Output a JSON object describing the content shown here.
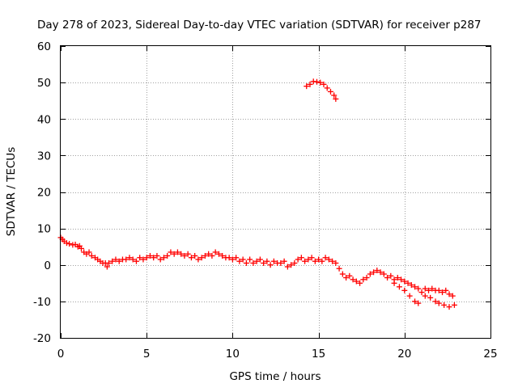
{
  "chart_data": {
    "type": "scatter",
    "title": "Day 278 of 2023, Sidereal Day-to-day VTEC variation (SDTVAR) for receiver p287",
    "xlabel": "GPS time / hours",
    "ylabel": "SDTVAR / TECUs",
    "xlim": [
      0,
      25
    ],
    "ylim": [
      -20,
      60
    ],
    "xticks": [
      "0",
      "5",
      "10",
      "15",
      "20",
      "25"
    ],
    "yticks": [
      "-20",
      "-10",
      "0",
      "10",
      "20",
      "30",
      "40",
      "50",
      "60"
    ],
    "grid": true,
    "marker": "plus",
    "color": "#ff0000",
    "series": [
      {
        "name": "SDTVAR",
        "points": [
          [
            0.0,
            7.5
          ],
          [
            0.1,
            7.0
          ],
          [
            0.2,
            6.5
          ],
          [
            0.35,
            6.0
          ],
          [
            0.5,
            5.8
          ],
          [
            0.7,
            5.5
          ],
          [
            0.85,
            5.6
          ],
          [
            1.0,
            5.0
          ],
          [
            1.1,
            5.2
          ],
          [
            1.2,
            4.5
          ],
          [
            1.35,
            3.5
          ],
          [
            1.5,
            3.0
          ],
          [
            1.65,
            3.5
          ],
          [
            1.8,
            2.5
          ],
          [
            2.0,
            2.0
          ],
          [
            2.15,
            1.5
          ],
          [
            2.3,
            1.0
          ],
          [
            2.45,
            0.5
          ],
          [
            2.6,
            0.5
          ],
          [
            2.7,
            -0.5
          ],
          [
            2.8,
            0.5
          ],
          [
            3.0,
            1.0
          ],
          [
            3.2,
            1.5
          ],
          [
            3.4,
            1.0
          ],
          [
            3.6,
            1.5
          ],
          [
            3.8,
            1.5
          ],
          [
            4.0,
            2.0
          ],
          [
            4.2,
            1.5
          ],
          [
            4.4,
            1.0
          ],
          [
            4.6,
            2.0
          ],
          [
            4.8,
            1.5
          ],
          [
            5.0,
            2.0
          ],
          [
            5.2,
            2.5
          ],
          [
            5.4,
            2.0
          ],
          [
            5.6,
            2.5
          ],
          [
            5.8,
            1.5
          ],
          [
            6.0,
            2.0
          ],
          [
            6.2,
            2.5
          ],
          [
            6.4,
            3.5
          ],
          [
            6.6,
            3.0
          ],
          [
            6.8,
            3.5
          ],
          [
            7.0,
            3.0
          ],
          [
            7.2,
            2.5
          ],
          [
            7.4,
            3.0
          ],
          [
            7.6,
            2.0
          ],
          [
            7.8,
            2.5
          ],
          [
            8.0,
            1.5
          ],
          [
            8.2,
            2.0
          ],
          [
            8.4,
            2.5
          ],
          [
            8.6,
            3.0
          ],
          [
            8.8,
            2.5
          ],
          [
            9.0,
            3.5
          ],
          [
            9.2,
            3.0
          ],
          [
            9.4,
            2.5
          ],
          [
            9.6,
            2.0
          ],
          [
            9.8,
            2.0
          ],
          [
            10.0,
            1.5
          ],
          [
            10.2,
            2.0
          ],
          [
            10.4,
            1.0
          ],
          [
            10.6,
            1.5
          ],
          [
            10.8,
            0.5
          ],
          [
            11.0,
            1.5
          ],
          [
            11.2,
            0.5
          ],
          [
            11.4,
            1.0
          ],
          [
            11.6,
            1.5
          ],
          [
            11.8,
            0.5
          ],
          [
            12.0,
            1.0
          ],
          [
            12.2,
            0.0
          ],
          [
            12.4,
            1.0
          ],
          [
            12.6,
            0.5
          ],
          [
            12.8,
            0.5
          ],
          [
            13.0,
            1.0
          ],
          [
            13.2,
            -0.5
          ],
          [
            13.4,
            0.0
          ],
          [
            13.6,
            0.5
          ],
          [
            13.8,
            1.5
          ],
          [
            14.0,
            2.0
          ],
          [
            14.2,
            1.0
          ],
          [
            14.4,
            1.5
          ],
          [
            14.6,
            2.0
          ],
          [
            14.8,
            1.0
          ],
          [
            15.0,
            1.5
          ],
          [
            15.2,
            1.0
          ],
          [
            15.4,
            2.0
          ],
          [
            15.6,
            1.5
          ],
          [
            15.8,
            1.0
          ],
          [
            16.0,
            0.5
          ],
          [
            16.2,
            -1.0
          ],
          [
            16.4,
            -2.5
          ],
          [
            16.6,
            -3.5
          ],
          [
            16.8,
            -3.0
          ],
          [
            17.0,
            -4.0
          ],
          [
            17.2,
            -4.5
          ],
          [
            17.4,
            -5.0
          ],
          [
            17.6,
            -4.0
          ],
          [
            17.8,
            -3.5
          ],
          [
            18.0,
            -2.5
          ],
          [
            18.2,
            -2.0
          ],
          [
            18.4,
            -1.5
          ],
          [
            18.6,
            -2.0
          ],
          [
            18.8,
            -2.5
          ],
          [
            19.0,
            -3.5
          ],
          [
            19.2,
            -3.0
          ],
          [
            19.4,
            -4.0
          ],
          [
            19.6,
            -3.5
          ],
          [
            19.8,
            -4.0
          ],
          [
            20.0,
            -4.5
          ],
          [
            20.2,
            -5.0
          ],
          [
            20.4,
            -5.5
          ],
          [
            20.6,
            -6.0
          ],
          [
            20.8,
            -6.5
          ],
          [
            21.0,
            -7.5
          ],
          [
            21.2,
            -6.5
          ],
          [
            21.4,
            -7.0
          ],
          [
            21.6,
            -6.5
          ],
          [
            21.8,
            -7.0
          ],
          [
            22.0,
            -7.0
          ],
          [
            22.2,
            -7.5
          ],
          [
            22.4,
            -7.0
          ],
          [
            22.6,
            -8.0
          ],
          [
            22.8,
            -8.5
          ],
          [
            19.4,
            -5.0
          ],
          [
            19.7,
            -6.0
          ],
          [
            20.0,
            -7.0
          ],
          [
            20.3,
            -8.5
          ],
          [
            20.6,
            -10.0
          ],
          [
            20.8,
            -10.5
          ],
          [
            21.2,
            -8.5
          ],
          [
            21.5,
            -9.0
          ],
          [
            21.8,
            -10.0
          ],
          [
            22.0,
            -10.5
          ],
          [
            22.3,
            -11.0
          ],
          [
            22.6,
            -11.5
          ],
          [
            22.9,
            -11.0
          ],
          [
            14.3,
            49.0
          ],
          [
            14.5,
            49.5
          ],
          [
            14.7,
            50.3
          ],
          [
            14.9,
            50.2
          ],
          [
            15.1,
            50.0
          ],
          [
            15.3,
            49.5
          ],
          [
            15.5,
            48.5
          ],
          [
            15.7,
            47.5
          ],
          [
            15.9,
            46.5
          ],
          [
            16.0,
            45.5
          ]
        ]
      }
    ]
  }
}
